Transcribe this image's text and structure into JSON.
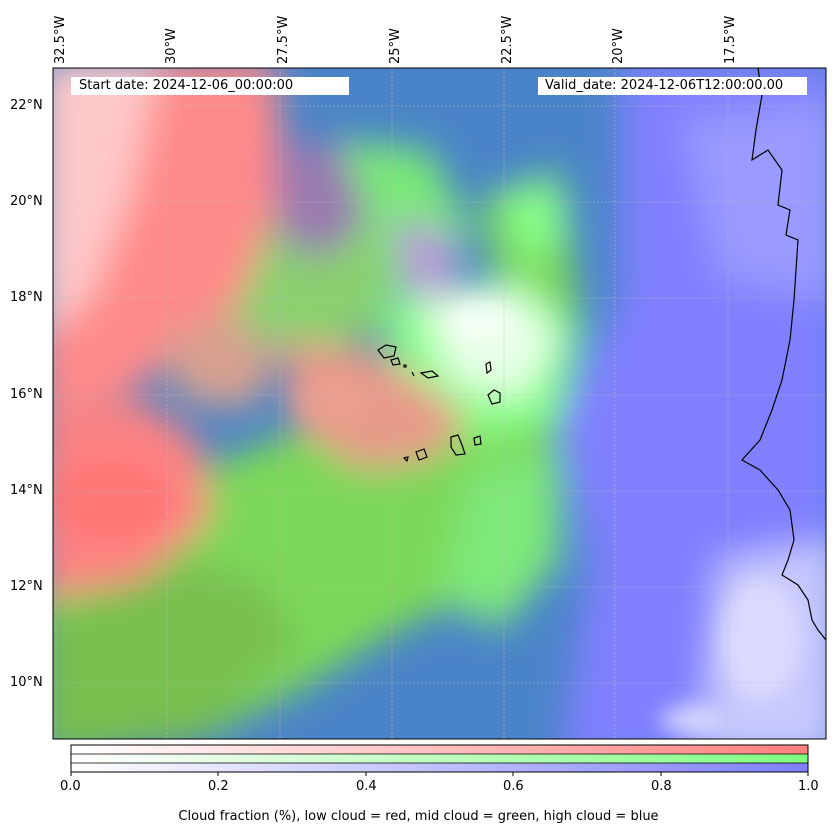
{
  "header": {
    "start_date": "Start date: 2024-12-06_00:00:00",
    "valid_date": "Valid_date: 2024-12-06T12:00:00.00"
  },
  "map": {
    "lon_labels": [
      "32.5°W",
      "30°W",
      "27.5°W",
      "25°W",
      "22.5°W",
      "20°W",
      "17.5°W"
    ],
    "lat_labels": [
      "22°N",
      "20°N",
      "18°N",
      "16°N",
      "14°N",
      "12°N",
      "10°N"
    ],
    "colors": {
      "low_cloud": "#ff7f7f",
      "mid_cloud": "#80ff80",
      "high_cloud": "#7f7fff",
      "blend_low_mid": "#80c850",
      "blend_mid_high": "#4a84c8",
      "coastline": "#000000"
    }
  },
  "colorbar": {
    "ticks": [
      "0.0",
      "0.2",
      "0.4",
      "0.6",
      "0.8",
      "1.0"
    ],
    "label": "Cloud fraction (%), low cloud = red, mid cloud = green, high cloud = blue",
    "bands": [
      "low cloud",
      "mid cloud",
      "high cloud"
    ]
  }
}
